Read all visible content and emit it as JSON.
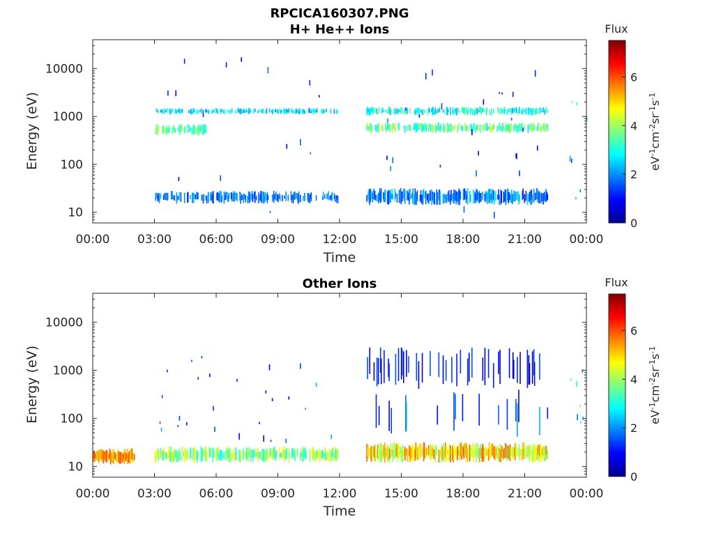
{
  "figure": {
    "title_line1": "RPCICA160307.PNG",
    "title_line2": "H+ He++ Ions"
  },
  "colormap": {
    "name": "jet",
    "stops": [
      "#00008f",
      "#0000ff",
      "#00ffff",
      "#ffff00",
      "#ff0000",
      "#800000"
    ]
  },
  "chart_data": [
    {
      "type": "heatmap",
      "title": "H+ He++ Ions",
      "xlabel": "Time",
      "ylabel": "Energy (eV)",
      "y_scale": "log",
      "x_ticks": [
        "00:00",
        "03:00",
        "06:00",
        "09:00",
        "12:00",
        "15:00",
        "18:00",
        "21:00",
        "00:00"
      ],
      "y_ticks": [
        "10",
        "100",
        "1000",
        "10000"
      ],
      "x_range_hours": [
        0,
        24
      ],
      "y_range_eV": [
        6,
        40000
      ],
      "colorbar": {
        "title": "Flux",
        "label": "eV-1cm-2sr-1s-1",
        "range": [
          0,
          7.5
        ],
        "ticks": [
          "0",
          "2",
          "4",
          "6"
        ]
      },
      "data_gaps_hours": [
        [
          0,
          3.0
        ],
        [
          11.9,
          13.3
        ],
        [
          22.1,
          23.15
        ]
      ],
      "bands": [
        {
          "time_hours": [
            3.0,
            11.9
          ],
          "energy_eV": [
            15,
            28
          ],
          "flux": [
            1.2,
            2.4
          ],
          "density": 0.55
        },
        {
          "time_hours": [
            13.3,
            22.1
          ],
          "energy_eV": [
            14,
            32
          ],
          "flux": [
            1.0,
            2.6
          ],
          "density": 0.75
        },
        {
          "time_hours": [
            3.0,
            11.9
          ],
          "energy_eV": [
            1100,
            1500
          ],
          "flux": [
            2.0,
            3.0
          ],
          "density": 0.5
        },
        {
          "time_hours": [
            13.3,
            22.1
          ],
          "energy_eV": [
            1050,
            1600
          ],
          "flux": [
            2.2,
            3.6
          ],
          "density": 0.6
        },
        {
          "time_hours": [
            3.0,
            5.5
          ],
          "energy_eV": [
            400,
            700
          ],
          "flux": [
            2.8,
            4.2
          ],
          "density": 0.6
        },
        {
          "time_hours": [
            13.3,
            22.1
          ],
          "energy_eV": [
            450,
            750
          ],
          "flux": [
            2.6,
            4.4
          ],
          "density": 0.6
        },
        {
          "time_hours": [
            3.0,
            11.9
          ],
          "energy_eV": [
            8,
            20000
          ],
          "flux": [
            0.3,
            2.0
          ],
          "density": 0.08
        },
        {
          "time_hours": [
            13.3,
            22.1
          ],
          "energy_eV": [
            8,
            20000
          ],
          "flux": [
            0.3,
            2.0
          ],
          "density": 0.09
        },
        {
          "time_hours": [
            23.15,
            24.0
          ],
          "energy_eV": [
            15,
            2000
          ],
          "flux": [
            1.0,
            3.8
          ],
          "density": 0.3
        }
      ]
    },
    {
      "type": "heatmap",
      "title": "Other Ions",
      "xlabel": "Time",
      "ylabel": "Energy (eV)",
      "y_scale": "log",
      "x_ticks": [
        "00:00",
        "03:00",
        "06:00",
        "09:00",
        "12:00",
        "15:00",
        "18:00",
        "21:00",
        "00:00"
      ],
      "y_ticks": [
        "10",
        "100",
        "1000",
        "10000"
      ],
      "x_range_hours": [
        0,
        24
      ],
      "y_range_eV": [
        6,
        40000
      ],
      "colorbar": {
        "title": "Flux",
        "label": "eV-1cm-2sr-1s-1",
        "range": [
          0,
          7.5
        ],
        "ticks": [
          "0",
          "2",
          "4",
          "6"
        ]
      },
      "data_gaps_hours": [
        [
          2.05,
          3.0
        ],
        [
          11.9,
          13.3
        ],
        [
          22.1,
          23.15
        ]
      ],
      "bands": [
        {
          "time_hours": [
            0.0,
            2.0
          ],
          "energy_eV": [
            11,
            24
          ],
          "flux": [
            4.6,
            6.2
          ],
          "density": 1.0
        },
        {
          "time_hours": [
            3.0,
            11.9
          ],
          "energy_eV": [
            12,
            26
          ],
          "flux": [
            2.8,
            4.8
          ],
          "density": 0.75
        },
        {
          "time_hours": [
            13.3,
            22.1
          ],
          "energy_eV": [
            12,
            32
          ],
          "flux": [
            3.6,
            6.0
          ],
          "density": 0.9
        },
        {
          "time_hours": [
            3.0,
            11.9
          ],
          "energy_eV": [
            30,
            3000
          ],
          "flux": [
            0.4,
            2.4
          ],
          "density": 0.1
        },
        {
          "time_hours": [
            13.3,
            22.1
          ],
          "energy_eV": [
            400,
            3000
          ],
          "flux": [
            0.3,
            1.6
          ],
          "density": 0.2
        },
        {
          "time_hours": [
            13.3,
            22.1
          ],
          "energy_eV": [
            40,
            400
          ],
          "flux": [
            0.5,
            2.6
          ],
          "density": 0.07
        },
        {
          "time_hours": [
            23.15,
            24.0
          ],
          "energy_eV": [
            12,
            1500
          ],
          "flux": [
            1.5,
            4.0
          ],
          "density": 0.3
        }
      ]
    }
  ]
}
